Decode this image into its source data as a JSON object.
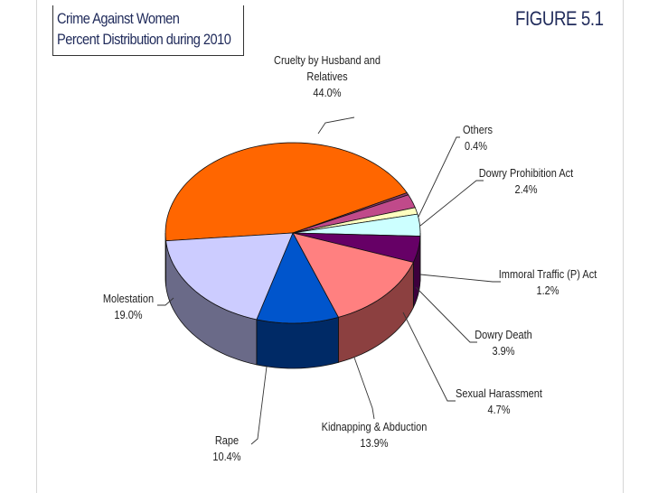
{
  "header": {
    "title_line1": "Crime Against Women",
    "title_line2": "Percent Distribution during 2010",
    "figure": "FIGURE 5.1"
  },
  "chart_data": {
    "type": "pie",
    "title": "Crime Against Women Percent Distribution during 2010",
    "slices": [
      {
        "name": "Cruelty by Husband and Relatives",
        "label_lines": [
          "Cruelty by Husband and",
          "Relatives"
        ],
        "value": 44.0,
        "value_label": "44.0%",
        "color": "#ff6600",
        "side": "#b34700"
      },
      {
        "name": "Others",
        "label_lines": [
          "Others"
        ],
        "value": 0.4,
        "value_label": "0.4%",
        "color": "#8a3a6a",
        "side": "#5c2446"
      },
      {
        "name": "Dowry Prohibition Act",
        "label_lines": [
          "Dowry Prohibition Act"
        ],
        "value": 2.4,
        "value_label": "2.4%",
        "color": "#c04a8a",
        "side": "#85305e"
      },
      {
        "name": "Immoral Traffic (P) Act",
        "label_lines": [
          "Immoral Traffic (P) Act"
        ],
        "value": 1.2,
        "value_label": "1.2%",
        "color": "#ffffc0",
        "side": "#c8c88a"
      },
      {
        "name": "Dowry Death",
        "label_lines": [
          "Dowry Death"
        ],
        "value": 3.9,
        "value_label": "3.9%",
        "color": "#ccffff",
        "side": "#8fbfbf"
      },
      {
        "name": "Sexual Harassment",
        "label_lines": [
          "Sexual Harassment"
        ],
        "value": 4.7,
        "value_label": "4.7%",
        "color": "#660066",
        "side": "#3d003d"
      },
      {
        "name": "Kidnapping & Abduction",
        "label_lines": [
          "Kidnapping & Abduction"
        ],
        "value": 13.9,
        "value_label": "13.9%",
        "color": "#ff8080",
        "side": "#8c4040"
      },
      {
        "name": "Rape",
        "label_lines": [
          "Rape"
        ],
        "value": 10.4,
        "value_label": "10.4%",
        "color": "#0055cc",
        "side": "#002a66"
      },
      {
        "name": "Molestation",
        "label_lines": [
          "Molestation"
        ],
        "value": 19.0,
        "value_label": "19.0%",
        "color": "#ccccff",
        "side": "#6a6a88"
      }
    ]
  }
}
